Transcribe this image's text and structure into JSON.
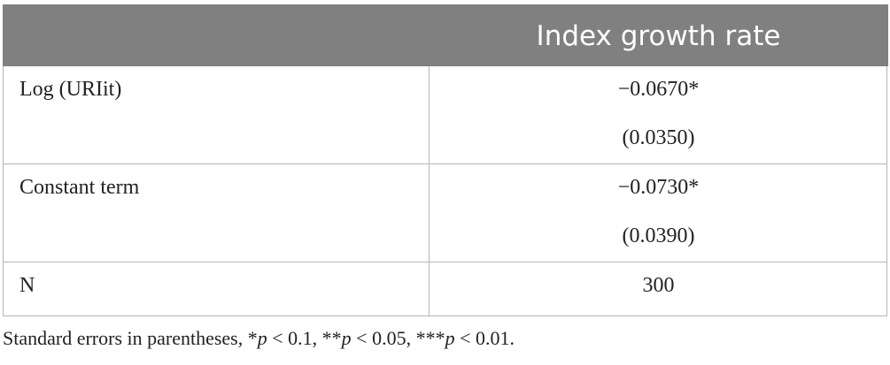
{
  "table": {
    "header": [
      "",
      "Index growth rate"
    ],
    "rows": [
      {
        "label": "Log (URIit)",
        "lines": [
          "−0.0670*",
          "(0.0350)"
        ]
      },
      {
        "label": "Constant term",
        "lines": [
          "−0.0730*",
          "(0.0390)"
        ]
      },
      {
        "label": "N",
        "lines": [
          "300"
        ]
      }
    ]
  },
  "footnote": [
    "Standard errors in parentheses, *",
    "p",
    " < 0.1, **",
    "p",
    " < 0.05, ***",
    "p",
    " < 0.01."
  ]
}
